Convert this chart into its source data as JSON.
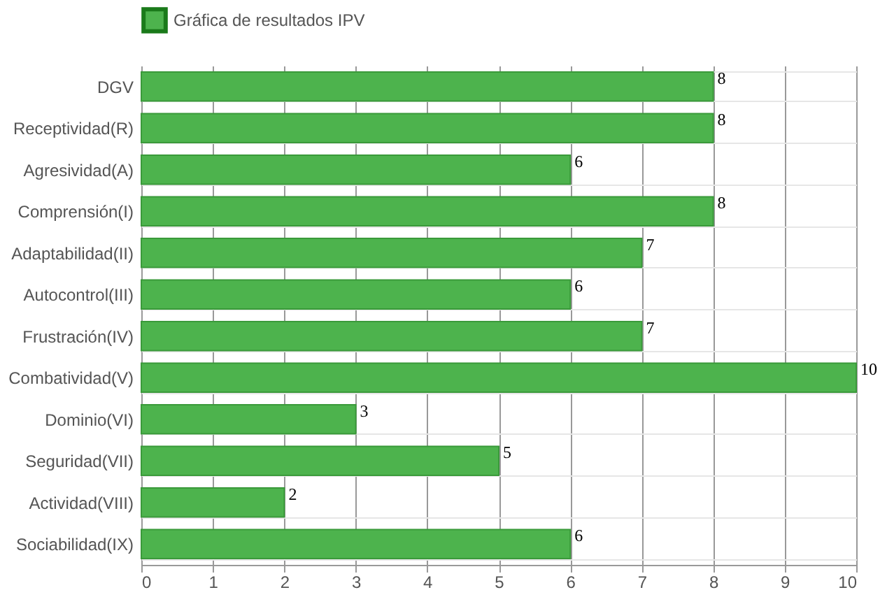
{
  "chart_data": {
    "type": "bar",
    "orientation": "horizontal",
    "categories": [
      "DGV",
      "Receptividad(R)",
      "Agresividad(A)",
      "Comprensión(I)",
      "Adaptabilidad(II)",
      "Autocontrol(III)",
      "Frustración(IV)",
      "Combatividad(V)",
      "Dominio(VI)",
      "Seguridad(VII)",
      "Actividad(VIII)",
      "Sociabilidad(IX)"
    ],
    "series": [
      {
        "name": "Gráfica de resultados IPV",
        "color": "#4db34d",
        "values": [
          8,
          8,
          6,
          8,
          7,
          6,
          7,
          10,
          3,
          5,
          2,
          6
        ]
      }
    ],
    "xlim": [
      0,
      10
    ],
    "xticks": [
      0,
      1,
      2,
      3,
      4,
      5,
      6,
      7,
      8,
      9,
      10
    ],
    "grid": true,
    "legend": "top",
    "data_labels": true
  }
}
